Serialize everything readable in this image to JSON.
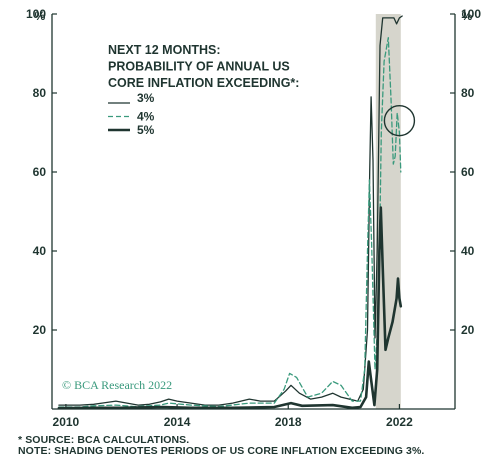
{
  "chart_data": {
    "type": "line",
    "title_lines": [
      "NEXT 12 MONTHS:",
      "PROBABILITY OF ANNUAL US",
      "CORE INFLATION EXCEEDING*:"
    ],
    "y_unit_left": "%",
    "y_unit_right": "%",
    "ylim": [
      0,
      100
    ],
    "yticks": [
      20,
      40,
      60,
      80,
      100
    ],
    "xlim": [
      2009.5,
      2024.0
    ],
    "xticks": [
      2010,
      2014,
      2018,
      2022
    ],
    "shaded_region": {
      "from": 2021.15,
      "to": 2022.05,
      "color": "#d6d5cc"
    },
    "annotation_circle": {
      "x": 2022.0,
      "y": 73
    },
    "watermark": "© BCA Research 2022",
    "series": [
      {
        "name": "3%",
        "color": "#1f3530",
        "style": "solid-thin",
        "points": [
          [
            2009.75,
            1
          ],
          [
            2010.0,
            1
          ],
          [
            2010.5,
            1
          ],
          [
            2011.0,
            1.2
          ],
          [
            2011.3,
            1.5
          ],
          [
            2011.8,
            2
          ],
          [
            2012.2,
            1.5
          ],
          [
            2012.6,
            1
          ],
          [
            2013.0,
            1.2
          ],
          [
            2013.4,
            1.8
          ],
          [
            2013.7,
            2.5
          ],
          [
            2014.0,
            2
          ],
          [
            2014.5,
            1.5
          ],
          [
            2015.0,
            1
          ],
          [
            2015.5,
            1
          ],
          [
            2016.0,
            1.5
          ],
          [
            2016.6,
            2.5
          ],
          [
            2017.0,
            2
          ],
          [
            2017.5,
            2
          ],
          [
            2017.9,
            4.5
          ],
          [
            2018.1,
            6
          ],
          [
            2018.4,
            4
          ],
          [
            2018.8,
            2.5
          ],
          [
            2019.2,
            3
          ],
          [
            2019.6,
            4
          ],
          [
            2019.9,
            3
          ],
          [
            2020.2,
            2.5
          ],
          [
            2020.5,
            2
          ],
          [
            2020.7,
            5
          ],
          [
            2020.85,
            20
          ],
          [
            2020.93,
            60
          ],
          [
            2020.98,
            79
          ],
          [
            2021.05,
            63
          ],
          [
            2021.12,
            18
          ],
          [
            2021.2,
            40
          ],
          [
            2021.3,
            92
          ],
          [
            2021.4,
            99
          ],
          [
            2021.6,
            99
          ],
          [
            2021.8,
            99
          ],
          [
            2021.9,
            97.5
          ],
          [
            2022.0,
            99
          ],
          [
            2022.1,
            99.5
          ]
        ]
      },
      {
        "name": "4%",
        "color": "#3a9a7d",
        "style": "dashed",
        "points": [
          [
            2009.75,
            0.5
          ],
          [
            2010.5,
            0.5
          ],
          [
            2011.0,
            0.8
          ],
          [
            2011.8,
            1
          ],
          [
            2012.5,
            0.6
          ],
          [
            2013.4,
            1
          ],
          [
            2013.7,
            1.5
          ],
          [
            2014.5,
            1
          ],
          [
            2015.5,
            0.6
          ],
          [
            2016.6,
            1.5
          ],
          [
            2017.5,
            1.5
          ],
          [
            2017.85,
            5
          ],
          [
            2018.05,
            9
          ],
          [
            2018.3,
            8
          ],
          [
            2018.7,
            3
          ],
          [
            2019.2,
            4
          ],
          [
            2019.6,
            7
          ],
          [
            2019.9,
            6
          ],
          [
            2020.3,
            2
          ],
          [
            2020.6,
            2
          ],
          [
            2020.75,
            10
          ],
          [
            2020.85,
            40
          ],
          [
            2020.92,
            58
          ],
          [
            2021.0,
            42
          ],
          [
            2021.12,
            10
          ],
          [
            2021.25,
            25
          ],
          [
            2021.35,
            70
          ],
          [
            2021.45,
            88
          ],
          [
            2021.6,
            94
          ],
          [
            2021.7,
            78
          ],
          [
            2021.78,
            62
          ],
          [
            2021.85,
            64
          ],
          [
            2021.92,
            75
          ],
          [
            2022.0,
            70
          ],
          [
            2022.05,
            60
          ]
        ]
      },
      {
        "name": "5%",
        "color": "#1f3530",
        "style": "solid-thick",
        "points": [
          [
            2009.75,
            0.2
          ],
          [
            2011.0,
            0.3
          ],
          [
            2012.0,
            0.3
          ],
          [
            2013.5,
            0.5
          ],
          [
            2014.5,
            0.3
          ],
          [
            2016.0,
            0.3
          ],
          [
            2017.5,
            0.5
          ],
          [
            2018.1,
            1.5
          ],
          [
            2018.5,
            0.8
          ],
          [
            2019.6,
            1
          ],
          [
            2020.3,
            0.3
          ],
          [
            2020.6,
            0.5
          ],
          [
            2020.8,
            3
          ],
          [
            2020.9,
            12
          ],
          [
            2020.97,
            8
          ],
          [
            2021.1,
            1
          ],
          [
            2021.2,
            10
          ],
          [
            2021.28,
            40
          ],
          [
            2021.33,
            51
          ],
          [
            2021.4,
            36
          ],
          [
            2021.5,
            15
          ],
          [
            2021.6,
            18
          ],
          [
            2021.75,
            22
          ],
          [
            2021.9,
            28
          ],
          [
            2021.95,
            33
          ],
          [
            2022.0,
            28
          ],
          [
            2022.05,
            26
          ]
        ]
      }
    ]
  },
  "footnotes": {
    "source": "* SOURCE: BCA CALCULATIONS.",
    "note": "NOTE: SHADING DENOTES PERIODS OF US CORE INFLATION EXCEEDING 3%."
  }
}
